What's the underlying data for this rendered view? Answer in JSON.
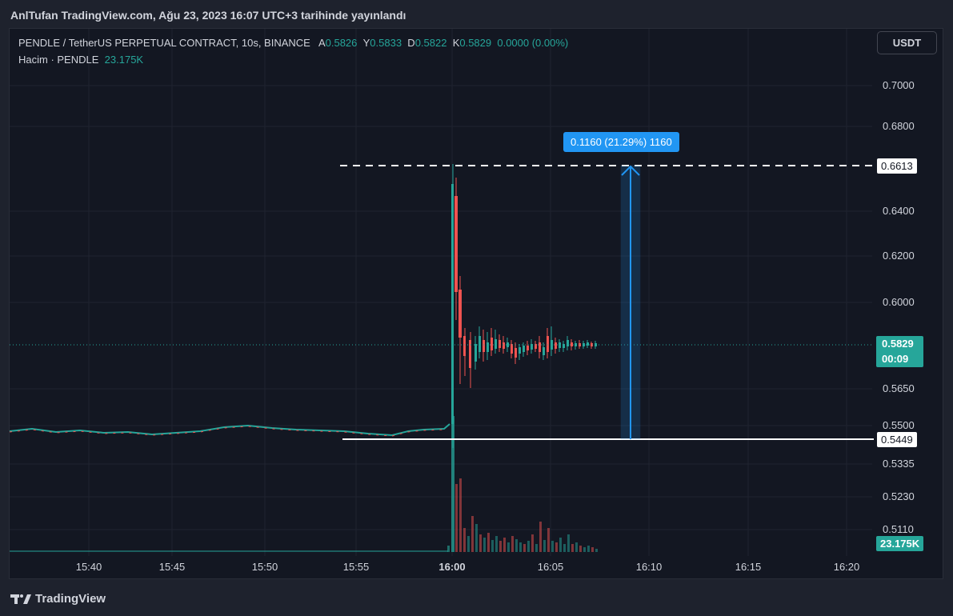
{
  "header": {
    "published_text": "AnlTufan TradingView.com, Ağu 23, 2023 16:07 UTC+3 tarihinde yayınlandı"
  },
  "legend": {
    "symbol": "PENDLE / TetherUS PERPETUAL CONTRACT, 10s, BINANCE",
    "open_label": "A",
    "open_value": "0.5826",
    "high_label": "Y",
    "high_value": "0.5833",
    "low_label": "D",
    "low_value": "0.5822",
    "close_label": "K",
    "close_value": "0.5829",
    "change": "0.0000 (0.00%)",
    "volume_label": "Hacim · PENDLE",
    "volume_value": "23.175K"
  },
  "toolbar": {
    "currency_button": "USDT"
  },
  "price_axis": [
    "0.7000",
    "0.6800",
    "0.6400",
    "0.6200",
    "0.6000",
    "0.5650",
    "0.5500",
    "0.5335",
    "0.5230",
    "0.5110"
  ],
  "time_axis": [
    "15:40",
    "15:45",
    "15:50",
    "15:55",
    "16:00",
    "16:05",
    "16:10",
    "16:15",
    "16:20"
  ],
  "labels": {
    "high_line": "0.6613",
    "low_line": "0.5449",
    "current_price": "0.5829",
    "countdown": "00:09",
    "volume": "23.175K",
    "measure": "0.1160 (21.29%) 1160"
  },
  "footer": {
    "brand": "TradingView"
  },
  "colors": {
    "up": "#26a69a",
    "down": "#ef5350",
    "measure": "#2196f3",
    "background": "#131722"
  }
}
